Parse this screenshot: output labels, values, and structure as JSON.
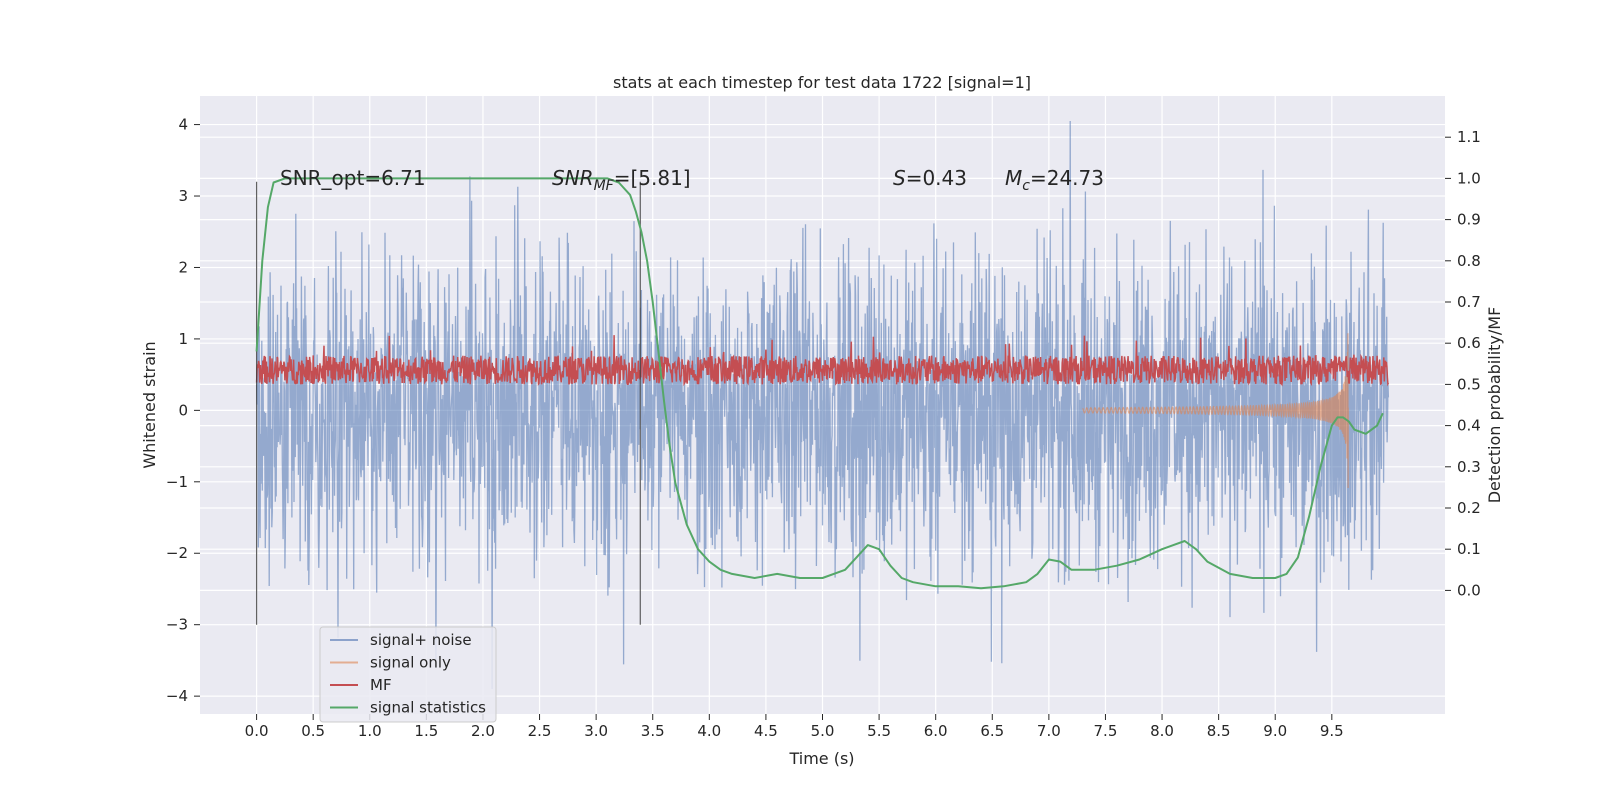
{
  "chart_data": {
    "type": "line",
    "title": "stats at each timestep for test data 1722 [signal=1]",
    "xlabel": "Time (s)",
    "ylabel": "Whitened strain",
    "y2label": "Detection probability/MF",
    "xlim": [
      -0.5,
      10.5
    ],
    "ylim": [
      -4.25,
      4.4
    ],
    "y2lim": [
      -0.3,
      1.2
    ],
    "x_ticks": [
      "0.0",
      "0.5",
      "1.0",
      "1.5",
      "2.0",
      "2.5",
      "3.0",
      "3.5",
      "4.0",
      "4.5",
      "5.0",
      "5.5",
      "6.0",
      "6.5",
      "7.0",
      "7.5",
      "8.0",
      "8.5",
      "9.0",
      "9.5"
    ],
    "y_ticks": [
      "−4",
      "−3",
      "−2",
      "−1",
      "0",
      "1",
      "2",
      "3",
      "4"
    ],
    "y2_ticks": [
      "0.0",
      "0.1",
      "0.2",
      "0.3",
      "0.4",
      "0.5",
      "0.6",
      "0.7",
      "0.8",
      "0.9",
      "1.0",
      "1.1"
    ],
    "grid": true,
    "legend_placement": "bottom-left",
    "annotations": {
      "snr_opt": "SNR_opt=6.71",
      "snr_mf_main": "SNR",
      "snr_mf_sub": "MF",
      "snr_mf_rest": "=[5.81]",
      "s_main": "S",
      "s_rest": "=0.43",
      "mc_main": "M",
      "mc_sub": "c",
      "mc_rest": "=24.73"
    },
    "vertical_markers": [
      0.0,
      3.39
    ],
    "series": [
      {
        "name": "signal+ noise",
        "color": "#4c72b0",
        "axis": "left",
        "x_range": [
          0,
          10
        ],
        "envelope": [
          -3.9,
          4.05
        ],
        "typical_band": [
          -2.3,
          2.4
        ]
      },
      {
        "name": "signal only",
        "color": "#dd8452",
        "axis": "left",
        "chirp_end": 9.65,
        "peak_amplitude": 1.6
      },
      {
        "name": "MF",
        "color": "#c44e52",
        "axis": "right",
        "baseline": 0.5,
        "spike_max": 0.62
      },
      {
        "name": "signal statistics",
        "color": "#55a868",
        "axis": "right",
        "x": [
          0.0,
          0.05,
          0.1,
          0.15,
          0.25,
          0.5,
          1.0,
          2.0,
          3.0,
          3.1,
          3.2,
          3.3,
          3.35,
          3.4,
          3.45,
          3.5,
          3.55,
          3.6,
          3.65,
          3.7,
          3.8,
          3.9,
          4.0,
          4.1,
          4.2,
          4.4,
          4.6,
          4.8,
          5.0,
          5.2,
          5.3,
          5.4,
          5.5,
          5.6,
          5.7,
          5.8,
          6.0,
          6.2,
          6.4,
          6.6,
          6.8,
          6.9,
          7.0,
          7.1,
          7.2,
          7.4,
          7.6,
          7.8,
          8.0,
          8.1,
          8.2,
          8.3,
          8.4,
          8.6,
          8.8,
          9.0,
          9.1,
          9.2,
          9.3,
          9.4,
          9.5,
          9.55,
          9.6,
          9.65,
          9.7,
          9.8,
          9.9,
          9.95
        ],
        "y": [
          0.58,
          0.8,
          0.93,
          0.99,
          1.0,
          1.0,
          1.0,
          1.0,
          1.0,
          1.0,
          0.99,
          0.96,
          0.92,
          0.87,
          0.8,
          0.7,
          0.58,
          0.46,
          0.35,
          0.26,
          0.16,
          0.1,
          0.07,
          0.05,
          0.04,
          0.03,
          0.04,
          0.03,
          0.03,
          0.05,
          0.08,
          0.11,
          0.1,
          0.06,
          0.03,
          0.02,
          0.01,
          0.01,
          0.005,
          0.01,
          0.02,
          0.04,
          0.075,
          0.07,
          0.05,
          0.05,
          0.06,
          0.075,
          0.1,
          0.11,
          0.12,
          0.1,
          0.07,
          0.04,
          0.03,
          0.03,
          0.04,
          0.08,
          0.18,
          0.3,
          0.4,
          0.42,
          0.42,
          0.41,
          0.39,
          0.38,
          0.4,
          0.43
        ]
      }
    ]
  }
}
